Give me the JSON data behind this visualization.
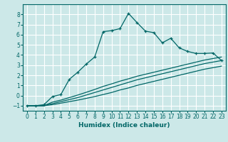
{
  "xlabel": "Humidex (Indice chaleur)",
  "background_color": "#cce8e8",
  "grid_color": "#ffffff",
  "line_color": "#006666",
  "xlim": [
    -0.5,
    23.5
  ],
  "ylim": [
    -1.5,
    9.0
  ],
  "xticks": [
    0,
    1,
    2,
    3,
    4,
    5,
    6,
    7,
    8,
    9,
    10,
    11,
    12,
    13,
    14,
    15,
    16,
    17,
    18,
    19,
    20,
    21,
    22,
    23
  ],
  "yticks": [
    -1,
    0,
    1,
    2,
    3,
    4,
    5,
    6,
    7,
    8
  ],
  "main_x": [
    0,
    1,
    2,
    3,
    4,
    5,
    6,
    7,
    8,
    9,
    10,
    11,
    12,
    13,
    14,
    15,
    16,
    17,
    18,
    19,
    20,
    21,
    22,
    23
  ],
  "main_y": [
    -1,
    -1,
    -0.9,
    -0.1,
    0.1,
    1.6,
    2.3,
    3.1,
    3.8,
    6.3,
    6.4,
    6.6,
    8.1,
    7.2,
    6.35,
    6.2,
    5.2,
    5.65,
    4.7,
    4.35,
    4.15,
    4.15,
    4.2,
    3.45
  ],
  "line1_x": [
    0,
    1,
    2,
    3,
    4,
    5,
    6,
    7,
    8,
    9,
    10,
    11,
    12,
    13,
    14,
    15,
    16,
    17,
    18,
    19,
    20,
    21,
    22,
    23
  ],
  "line1_y": [
    -1,
    -1,
    -1,
    -0.9,
    -0.75,
    -0.6,
    -0.45,
    -0.28,
    -0.1,
    0.1,
    0.3,
    0.55,
    0.75,
    1.0,
    1.2,
    1.4,
    1.6,
    1.8,
    2.0,
    2.2,
    2.4,
    2.6,
    2.75,
    2.9
  ],
  "line2_x": [
    0,
    1,
    2,
    3,
    4,
    5,
    6,
    7,
    8,
    9,
    10,
    11,
    12,
    13,
    14,
    15,
    16,
    17,
    18,
    19,
    20,
    21,
    22,
    23
  ],
  "line2_y": [
    -1,
    -1,
    -1,
    -0.8,
    -0.6,
    -0.4,
    -0.2,
    0.05,
    0.3,
    0.55,
    0.8,
    1.05,
    1.3,
    1.55,
    1.75,
    1.95,
    2.15,
    2.35,
    2.55,
    2.75,
    2.95,
    3.15,
    3.3,
    3.45
  ],
  "line3_x": [
    0,
    1,
    2,
    3,
    4,
    5,
    6,
    7,
    8,
    9,
    10,
    11,
    12,
    13,
    14,
    15,
    16,
    17,
    18,
    19,
    20,
    21,
    22,
    23
  ],
  "line3_y": [
    -1,
    -1,
    -1,
    -0.65,
    -0.45,
    -0.2,
    0.05,
    0.32,
    0.6,
    0.9,
    1.15,
    1.42,
    1.65,
    1.9,
    2.1,
    2.3,
    2.5,
    2.7,
    2.9,
    3.1,
    3.3,
    3.5,
    3.65,
    3.8
  ]
}
